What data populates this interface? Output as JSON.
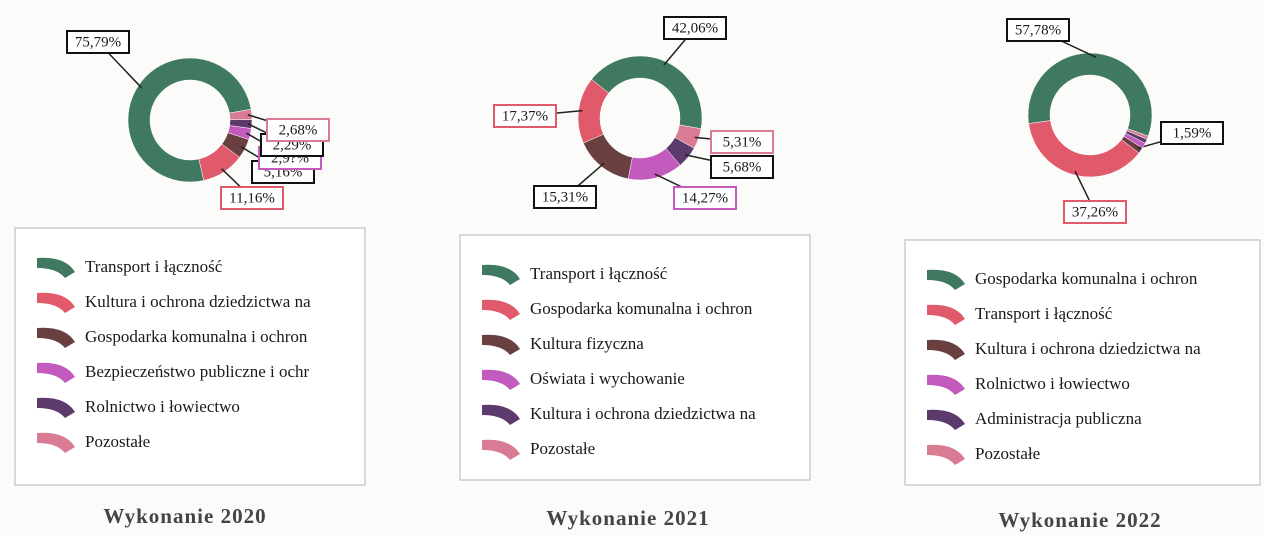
{
  "chart_data": [
    {
      "type": "donut",
      "title": "Wykonanie 2020",
      "categories": [
        "Transport i łączność",
        "Kultura i ochrona dziedzictwa na",
        "Gospodarka komunalna i ochron",
        "Bezpieczeństwo publiczne i ochr",
        "Rolnictwo i łowiectwo",
        "Pozostałe"
      ],
      "values": [
        75.79,
        11.16,
        5.16,
        2.92,
        2.29,
        2.68
      ],
      "value_labels": [
        "75,79%",
        "11,16%",
        "5,16%",
        "2,9?%",
        "2,29%",
        "2,68%"
      ],
      "colors": [
        "#3f7a60",
        "#e05a6c",
        "#6a3f40",
        "#c25bbd",
        "#5c3b6c",
        "#d97b93"
      ]
    },
    {
      "type": "donut",
      "title": "Wykonanie 2021",
      "categories": [
        "Transport i łączność",
        "Gospodarka komunalna i ochron",
        "Kultura fizyczna",
        "Oświata i wychowanie",
        "Kultura i ochrona dziedzictwa na",
        "Pozostałe"
      ],
      "values": [
        42.06,
        17.37,
        15.31,
        14.27,
        5.68,
        5.31
      ],
      "value_labels": [
        "42,06%",
        "17,37%",
        "15,31%",
        "14,27%",
        "5,68%",
        "5,31%"
      ],
      "colors": [
        "#3f7a60",
        "#e05a6c",
        "#6a3f40",
        "#c25bbd",
        "#5c3b6c",
        "#d97b93"
      ]
    },
    {
      "type": "donut",
      "title": "Wykonanie 2022",
      "categories": [
        "Gospodarka komunalna i ochron",
        "Transport i łączność",
        "Kultura i ochrona dziedzictwa na",
        "Rolnictwo i łowiectwo",
        "Administracja publiczna",
        "Pozostałe"
      ],
      "values": [
        57.78,
        37.26,
        1.59,
        1.4,
        1.1,
        0.87
      ],
      "value_labels": [
        "57,78%",
        "37,26%",
        "1,59%",
        null,
        null,
        null
      ],
      "colors": [
        "#3f7a60",
        "#e05a6c",
        "#6a3f40",
        "#c25bbd",
        "#5c3b6c",
        "#d97b93"
      ]
    }
  ]
}
